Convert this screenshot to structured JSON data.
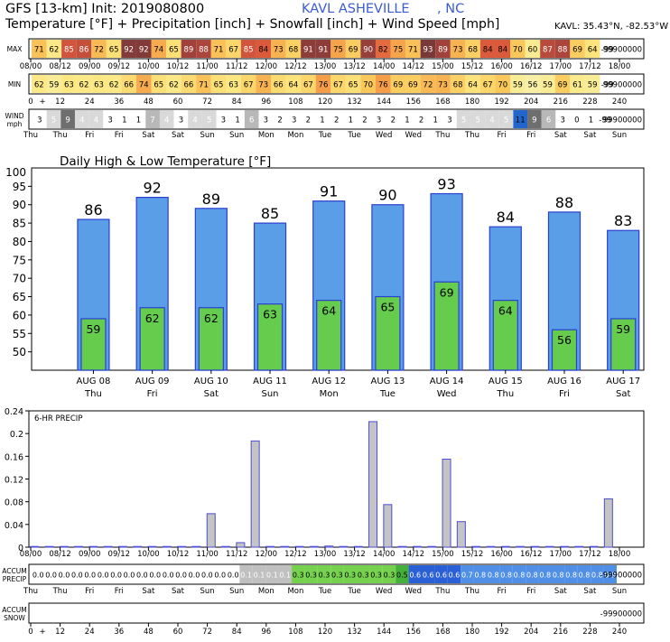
{
  "header": {
    "model": "GFS [13-km] Init: 2019080800",
    "station": "KAVL ASHEVILLE",
    "state": ", NC",
    "subtitle": "Temperature [°F] + Precipitation [inch] + Snowfall [inch] + Wind Speed [mph]",
    "coords": "KAVL: 35.43°N, -82.53°W"
  },
  "strip_labels": {
    "max": "MAX",
    "min": "MIN",
    "wind": "WIND",
    "wind_unit": "mph",
    "accum_precip": "ACCUM",
    "accum_precip2": "PRECIP",
    "accum_snow": "ACCUM",
    "accum_snow2": "SNOW"
  },
  "time_labels": [
    "08/00",
    "08/12",
    "09/00",
    "09/12",
    "10/00",
    "10/12",
    "11/00",
    "11/12",
    "12/00",
    "12/12",
    "13/00",
    "13/12",
    "14/00",
    "14/12",
    "15/00",
    "15/12",
    "16/00",
    "16/12",
    "17/00",
    "17/12",
    "18/00"
  ],
  "hour_labels": [
    "0",
    "12",
    "24",
    "36",
    "48",
    "60",
    "72",
    "84",
    "96",
    "108",
    "120",
    "132",
    "144",
    "156",
    "168",
    "180",
    "192",
    "204",
    "216",
    "228",
    "240"
  ],
  "day_labels": [
    "Thu",
    "Thu",
    "Fri",
    "Fri",
    "Sat",
    "Sat",
    "Sun",
    "Sun",
    "Mon",
    "Mon",
    "Tue",
    "Tue",
    "Wed",
    "Wed",
    "Thu",
    "Thu",
    "Fri",
    "Fri",
    "Sat",
    "Sat",
    "Sun"
  ],
  "max_strip": {
    "values": [
      "71",
      "62",
      "85",
      "86",
      "72",
      "65",
      "92",
      "92",
      "74",
      "65",
      "89",
      "88",
      "71",
      "67",
      "85",
      "84",
      "73",
      "68",
      "91",
      "91",
      "75",
      "69",
      "90",
      "82",
      "75",
      "71",
      "93",
      "89",
      "73",
      "68",
      "84",
      "84",
      "70",
      "60",
      "87",
      "88",
      "69",
      "64",
      "-99"
    ],
    "tail": "99900000"
  },
  "min_strip": {
    "values": [
      "62",
      "59",
      "63",
      "62",
      "63",
      "62",
      "66",
      "74",
      "65",
      "62",
      "66",
      "71",
      "65",
      "63",
      "67",
      "73",
      "66",
      "64",
      "67",
      "76",
      "67",
      "65",
      "70",
      "76",
      "69",
      "69",
      "72",
      "73",
      "68",
      "64",
      "67",
      "70",
      "59",
      "56",
      "59",
      "69",
      "61",
      "59",
      "-99"
    ],
    "tail": "99900000"
  },
  "wind_strip": {
    "values": [
      "3",
      "5",
      "9",
      "4",
      "4",
      "3",
      "1",
      "1",
      "7",
      "4",
      "3",
      "4",
      "5",
      "3",
      "1",
      "6",
      "3",
      "2",
      "3",
      "2",
      "1",
      "2",
      "1",
      "2",
      "3",
      "2",
      "1",
      "2",
      "1",
      "3",
      "5",
      "5",
      "4",
      "5",
      "11",
      "9",
      "6",
      "3",
      "0",
      "1",
      "-99"
    ],
    "tail": "99900000"
  },
  "accum_precip_strip": {
    "values": [
      "0.0",
      "0.0",
      "0.0",
      "0.0",
      "0.0",
      "0.0",
      "0.0",
      "0.0",
      "0.0",
      "0.0",
      "0.0",
      "0.0",
      "0.0",
      "0.0",
      "0.0",
      "0.0",
      "0.1",
      "0.1",
      "0.1",
      "0.1",
      "0.3",
      "0.3",
      "0.3",
      "0.3",
      "0.3",
      "0.3",
      "0.3",
      "0.3",
      "0.5",
      "0.6",
      "0.6",
      "0.6",
      "0.6",
      "0.7",
      "0.8",
      "0.8",
      "0.8",
      "0.8",
      "0.8",
      "0.8",
      "0.8",
      "0.8",
      "0.8",
      "0.8",
      "0.9"
    ],
    "tail": "-99900000"
  },
  "accum_snow_strip": {
    "tail": "-99900000"
  },
  "colors": {
    "bar_high": "#5a9ee8",
    "bar_low": "#66cc4e",
    "bar_edge": "#2b3fd0",
    "precip_bar": "#c4c4c4",
    "precip_edge": "#4d4dd6",
    "wind_dark": "#7a7a7a",
    "wind_blue": "#2266cc"
  },
  "chart_data": [
    {
      "type": "bar",
      "title": "Daily High & Low Temperature [°F]",
      "categories": [
        "AUG 08",
        "AUG 09",
        "AUG 10",
        "AUG 11",
        "AUG 12",
        "AUG 13",
        "AUG 14",
        "AUG 15",
        "AUG 16",
        "AUG 17"
      ],
      "weekdays": [
        "Thu",
        "Fri",
        "Sat",
        "Sun",
        "Mon",
        "Tue",
        "Wed",
        "Thu",
        "Fri",
        "Sat"
      ],
      "series": [
        {
          "name": "High",
          "values": [
            86,
            92,
            89,
            85,
            91,
            90,
            93,
            84,
            88,
            83
          ]
        },
        {
          "name": "Low",
          "values": [
            59,
            62,
            62,
            63,
            64,
            65,
            69,
            64,
            56,
            59
          ]
        }
      ],
      "ylim": [
        45,
        100
      ],
      "yticks": [
        45,
        50,
        55,
        60,
        65,
        70,
        75,
        80,
        85,
        90,
        95,
        100
      ],
      "grid": false
    },
    {
      "type": "bar",
      "title": "6-HR PRECIP",
      "x_hours": [
        0,
        6,
        12,
        18,
        24,
        30,
        36,
        42,
        48,
        54,
        60,
        66,
        72,
        78,
        84,
        90,
        96,
        102,
        108,
        114,
        120,
        126,
        132,
        138,
        144,
        150,
        156,
        162,
        168,
        174,
        180,
        186,
        192,
        198,
        204,
        210,
        216,
        222,
        228,
        234
      ],
      "values": [
        0,
        0,
        0,
        0,
        0,
        0,
        0,
        0,
        0,
        0,
        0,
        0,
        0.059,
        0,
        0.008,
        0.187,
        0,
        0,
        0,
        0,
        0.002,
        0,
        0,
        0.221,
        0.075,
        0,
        0,
        0,
        0.155,
        0.045,
        0,
        0,
        0,
        0,
        0,
        0,
        0,
        0,
        0,
        0.085
      ],
      "ylim": [
        0,
        0.24
      ],
      "yticks": [
        "0",
        "0.04",
        "0.08",
        "0.12",
        "0.16",
        "0.2",
        "0.24"
      ],
      "ytick_values": [
        0,
        0.04,
        0.08,
        0.12,
        0.16,
        0.2,
        0.24
      ],
      "grid": false
    }
  ]
}
